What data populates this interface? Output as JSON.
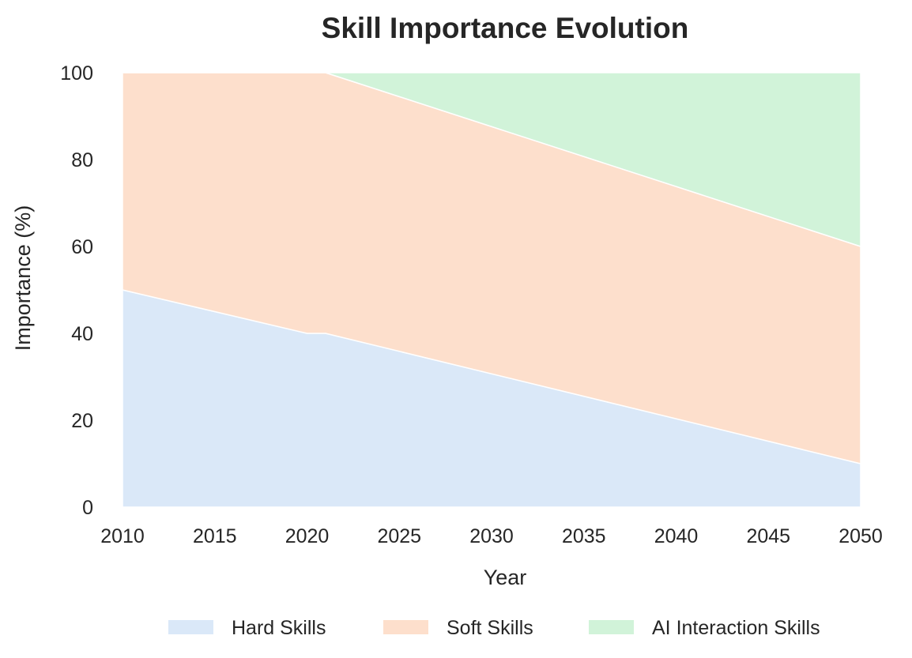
{
  "chart_data": {
    "type": "area",
    "stacked": true,
    "title": "Skill Importance Evolution",
    "xlabel": "Year",
    "ylabel": "Importance (%)",
    "x": [
      2010,
      2020,
      2021,
      2050
    ],
    "series": [
      {
        "name": "Hard Skills",
        "values": [
          50,
          40,
          40,
          10
        ],
        "color": "#dae8f8"
      },
      {
        "name": "Soft Skills",
        "values": [
          50,
          60,
          60,
          50
        ],
        "color": "#fddfcc"
      },
      {
        "name": "AI Interaction Skills",
        "values": [
          0,
          0,
          0,
          40
        ],
        "color": "#d1f3d9"
      }
    ],
    "xlim": [
      2010,
      2050
    ],
    "ylim": [
      0,
      100
    ],
    "xticks": [
      2010,
      2015,
      2020,
      2025,
      2030,
      2035,
      2040,
      2045,
      2050
    ],
    "yticks": [
      0,
      20,
      40,
      60,
      80,
      100
    ],
    "grid": false,
    "legend_position": "bottom"
  }
}
